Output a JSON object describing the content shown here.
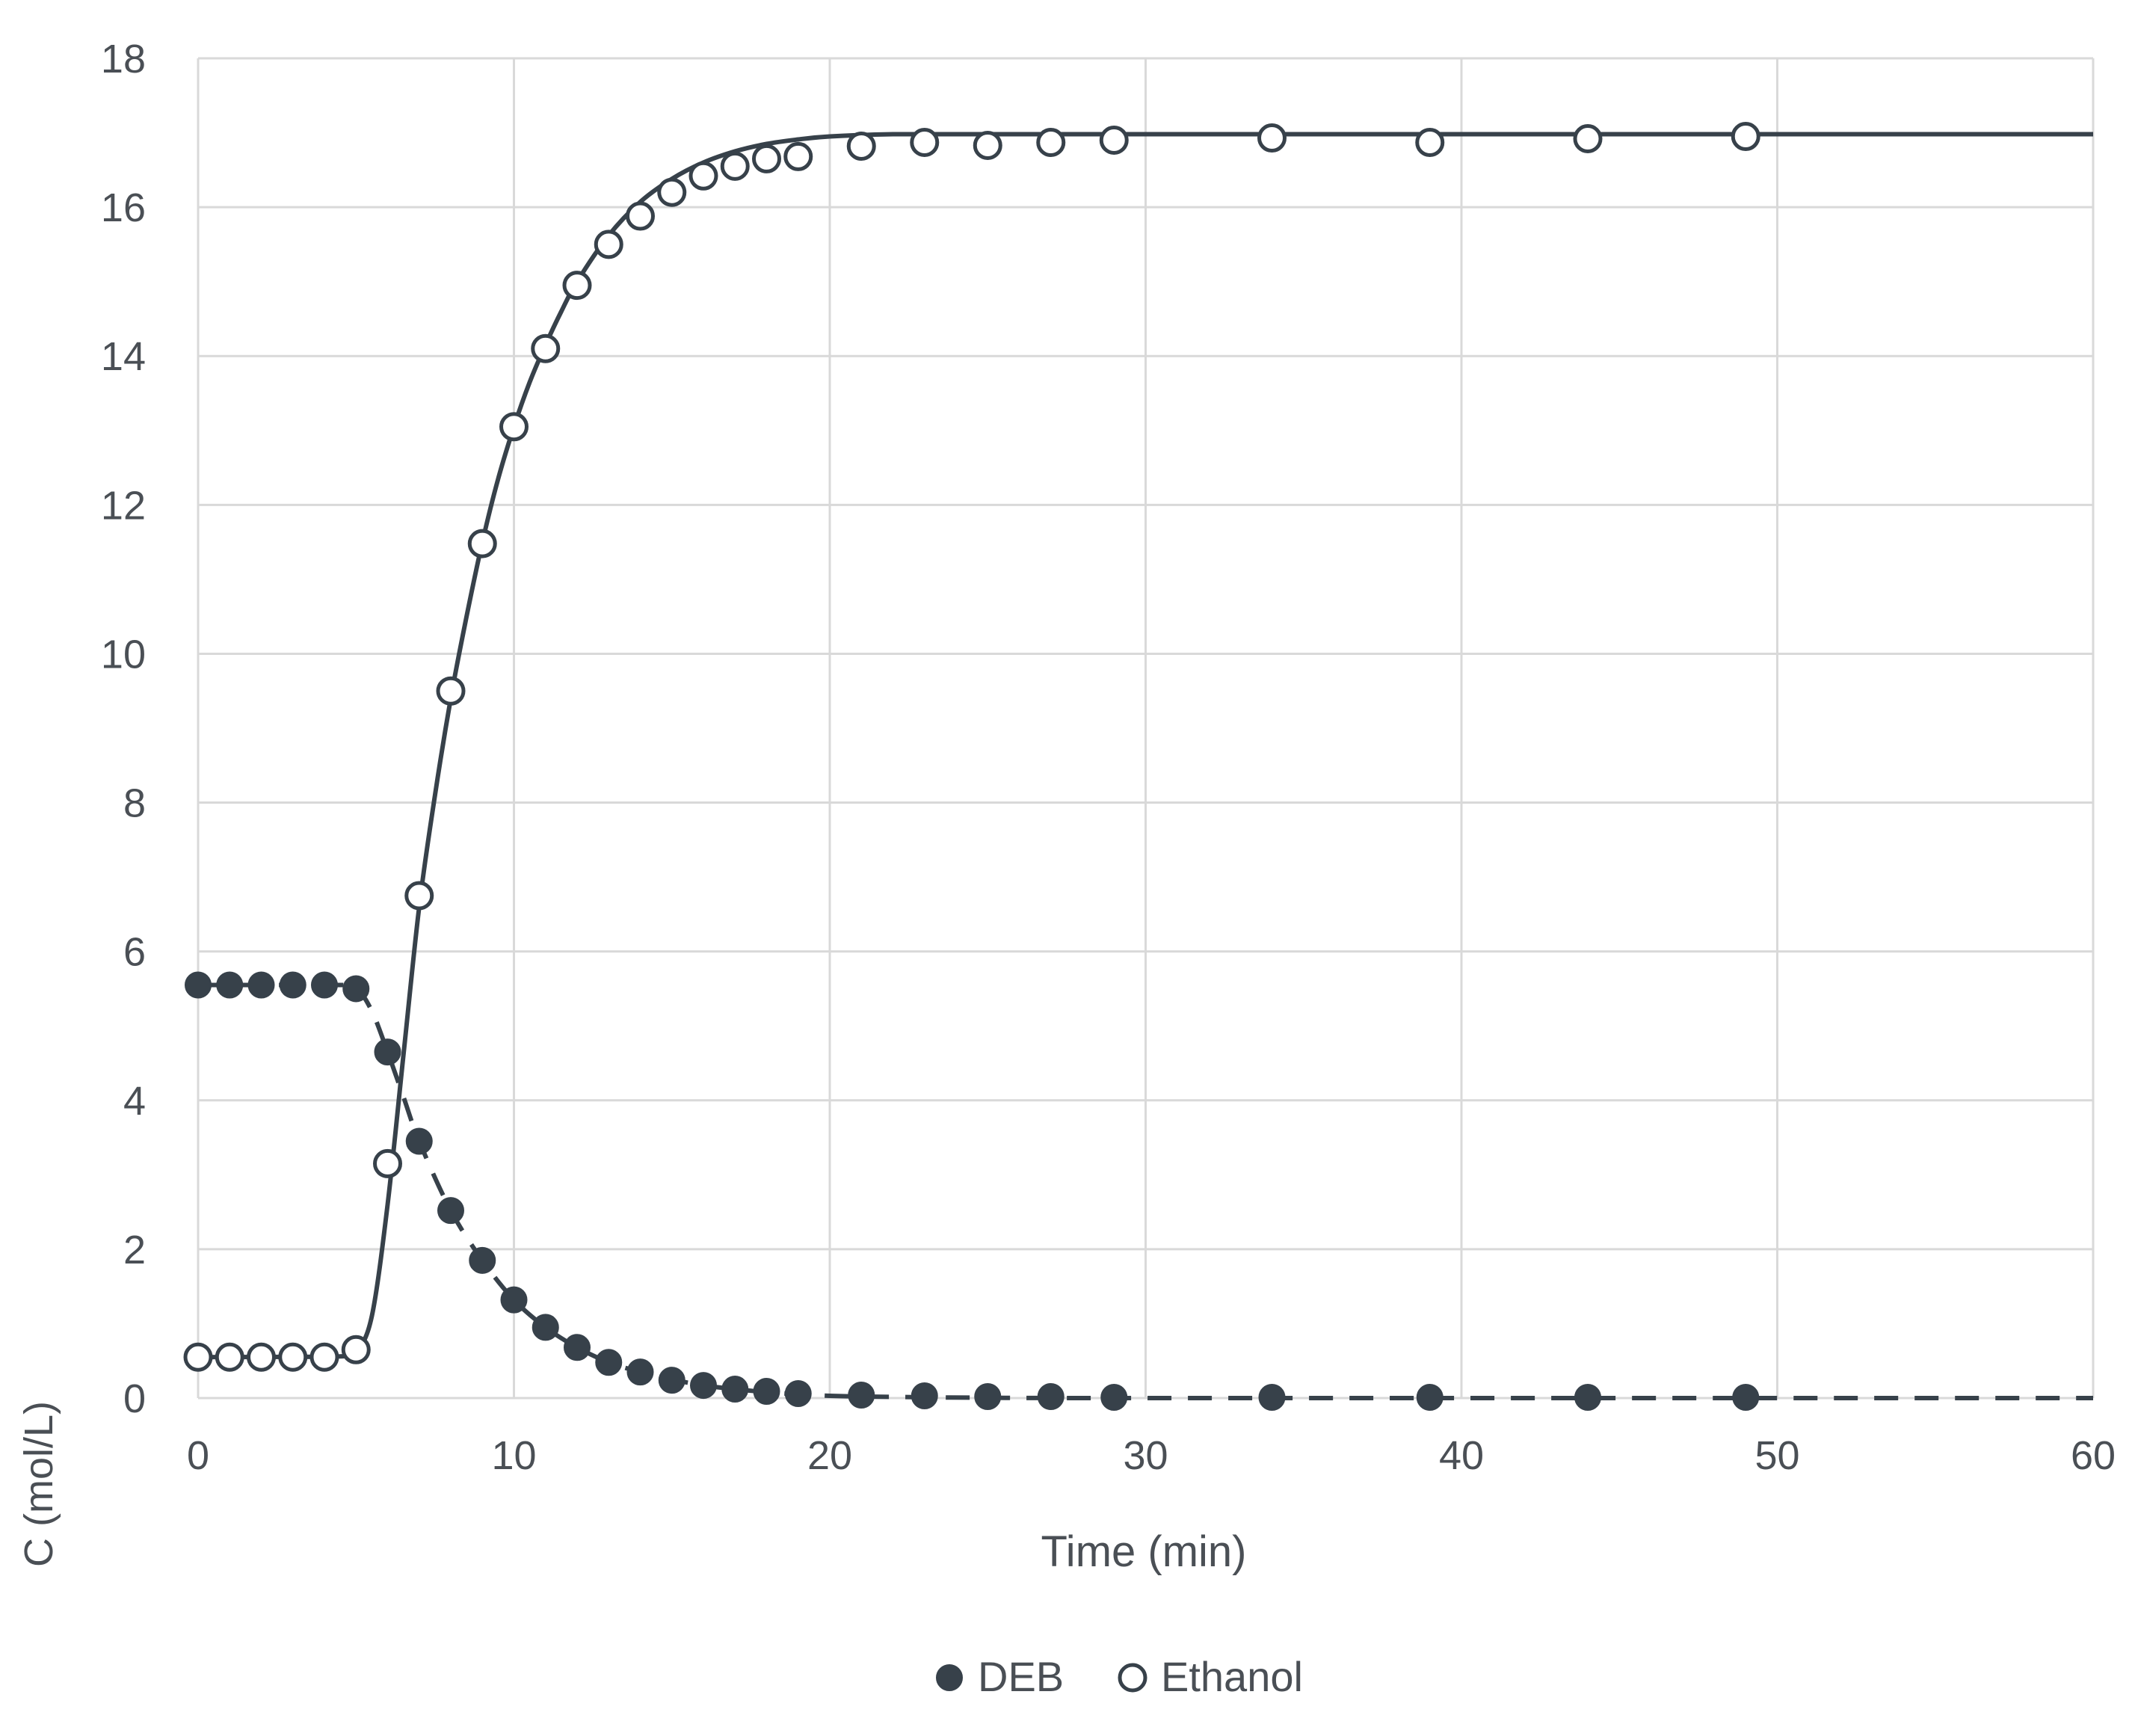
{
  "chart_data": {
    "type": "scatter",
    "title": "",
    "xlabel": "Time (min)",
    "ylabel": "C (mol/L)",
    "xlim": [
      0,
      60
    ],
    "ylim": [
      0,
      18
    ],
    "x_ticks": [
      0,
      10,
      20,
      30,
      40,
      50,
      60
    ],
    "y_ticks": [
      0,
      2,
      4,
      6,
      8,
      10,
      12,
      14,
      16,
      18
    ],
    "grid": true,
    "legend_position": "bottom-center",
    "colors": {
      "marker": "#37414a",
      "line": "#37414a",
      "grid": "#d9d9d9",
      "text": "#4a4f55"
    },
    "series": [
      {
        "name": "DEB",
        "marker": "filled-circle",
        "points": [
          [
            0,
            5.55
          ],
          [
            1,
            5.55
          ],
          [
            2,
            5.55
          ],
          [
            3,
            5.55
          ],
          [
            4,
            5.55
          ],
          [
            5,
            5.5
          ],
          [
            6,
            4.65
          ],
          [
            7,
            3.45
          ],
          [
            8,
            2.52
          ],
          [
            9,
            1.85
          ],
          [
            10,
            1.32
          ],
          [
            11,
            0.95
          ],
          [
            12,
            0.68
          ],
          [
            13,
            0.48
          ],
          [
            14,
            0.35
          ],
          [
            15,
            0.24
          ],
          [
            16,
            0.17
          ],
          [
            17,
            0.12
          ],
          [
            18,
            0.09
          ],
          [
            19,
            0.06
          ],
          [
            21,
            0.04
          ],
          [
            23,
            0.03
          ],
          [
            25,
            0.02
          ],
          [
            27,
            0.02
          ],
          [
            29,
            0.01
          ],
          [
            34,
            0.01
          ],
          [
            39,
            0.01
          ],
          [
            44,
            0.01
          ],
          [
            49,
            0.01
          ]
        ]
      },
      {
        "name": "Ethanol",
        "marker": "open-circle",
        "points": [
          [
            0,
            0.55
          ],
          [
            1,
            0.55
          ],
          [
            2,
            0.55
          ],
          [
            3,
            0.55
          ],
          [
            4,
            0.55
          ],
          [
            5,
            0.65
          ],
          [
            6,
            3.15
          ],
          [
            7,
            6.75
          ],
          [
            8,
            9.5
          ],
          [
            9,
            11.48
          ],
          [
            10,
            13.05
          ],
          [
            11,
            14.1
          ],
          [
            12,
            14.95
          ],
          [
            13,
            15.5
          ],
          [
            14,
            15.88
          ],
          [
            15,
            16.2
          ],
          [
            16,
            16.42
          ],
          [
            17,
            16.55
          ],
          [
            18,
            16.65
          ],
          [
            19,
            16.68
          ],
          [
            21,
            16.82
          ],
          [
            23,
            16.87
          ],
          [
            25,
            16.83
          ],
          [
            27,
            16.87
          ],
          [
            29,
            16.9
          ],
          [
            34,
            16.93
          ],
          [
            39,
            16.87
          ],
          [
            44,
            16.92
          ],
          [
            49,
            16.95
          ]
        ]
      }
    ],
    "fit_curves": [
      {
        "for": "DEB",
        "style": "dashed",
        "points": [
          [
            0,
            5.55
          ],
          [
            4.5,
            5.55
          ],
          [
            5,
            5.52
          ],
          [
            5.5,
            5.2
          ],
          [
            6,
            4.65
          ],
          [
            6.5,
            4.05
          ],
          [
            7,
            3.45
          ],
          [
            8,
            2.52
          ],
          [
            9,
            1.85
          ],
          [
            10,
            1.32
          ],
          [
            11,
            0.95
          ],
          [
            12,
            0.68
          ],
          [
            13,
            0.48
          ],
          [
            14,
            0.35
          ],
          [
            15,
            0.25
          ],
          [
            16,
            0.17
          ],
          [
            17,
            0.12
          ],
          [
            18,
            0.08
          ],
          [
            19,
            0.05
          ],
          [
            20,
            0.03
          ],
          [
            22,
            0.015
          ],
          [
            25,
            0.005
          ],
          [
            30,
            0.0
          ],
          [
            60,
            0.0
          ]
        ]
      },
      {
        "for": "Ethanol",
        "style": "solid",
        "points": [
          [
            0,
            0.55
          ],
          [
            4.5,
            0.56
          ],
          [
            5,
            0.62
          ],
          [
            5.5,
            1.1
          ],
          [
            6,
            2.6
          ],
          [
            6.5,
            4.6
          ],
          [
            7,
            6.6
          ],
          [
            7.5,
            8.1
          ],
          [
            8,
            9.4
          ],
          [
            8.5,
            10.5
          ],
          [
            9,
            11.5
          ],
          [
            9.5,
            12.35
          ],
          [
            10,
            13.05
          ],
          [
            10.5,
            13.65
          ],
          [
            11,
            14.15
          ],
          [
            11.5,
            14.6
          ],
          [
            12,
            15.0
          ],
          [
            13,
            15.62
          ],
          [
            14,
            16.07
          ],
          [
            15,
            16.38
          ],
          [
            16,
            16.6
          ],
          [
            17,
            16.75
          ],
          [
            18,
            16.85
          ],
          [
            19,
            16.91
          ],
          [
            20,
            16.95
          ],
          [
            22,
            16.98
          ],
          [
            25,
            16.98
          ],
          [
            30,
            16.98
          ],
          [
            60,
            16.98
          ]
        ]
      }
    ]
  }
}
